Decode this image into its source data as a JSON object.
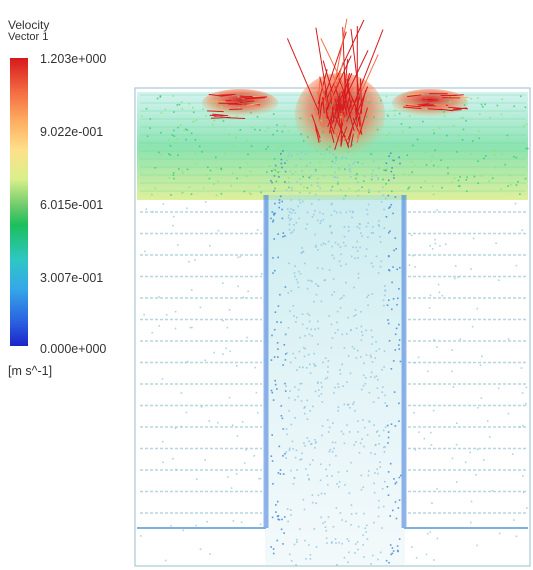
{
  "legend": {
    "title": "Velocity",
    "subtitle": "Vector 1",
    "ticks": [
      "1.203e+000",
      "9.022e-001",
      "6.015e-001",
      "3.007e-001",
      "0.000e+000"
    ],
    "units": "[m s^-1]",
    "colors": {
      "high": "#d7191c",
      "mid_high": "#fee08b",
      "mid": "#1cbf5c",
      "mid_low": "#35a8e8",
      "low": "#1a25c8"
    }
  }
}
